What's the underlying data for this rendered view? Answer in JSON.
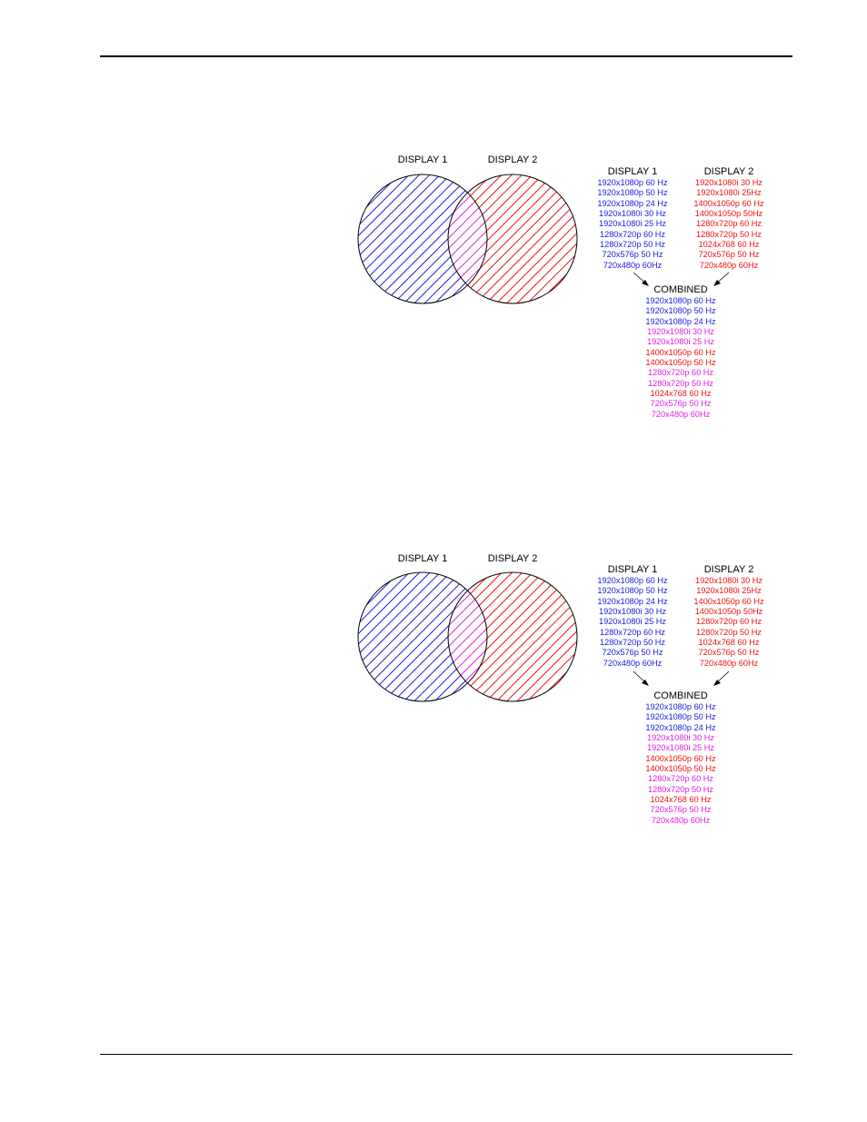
{
  "colors": {
    "display1": "#1a1ae0",
    "display2": "#ee1111",
    "shared": "#e020e0",
    "black": "#000000"
  },
  "figures": [
    {
      "venn": {
        "left_label": "DISPLAY 1",
        "right_label": "DISPLAY 2"
      },
      "display1": {
        "title": "DISPLAY 1",
        "modes": [
          "1920x1080p 60 Hz",
          "1920x1080p 50 Hz",
          "1920x1080p 24 Hz",
          "1920x1080i 30 Hz",
          "1920x1080i 25 Hz",
          "1280x720p 60 Hz",
          "1280x720p 50 Hz",
          "720x576p 50 Hz",
          "720x480p 60Hz"
        ]
      },
      "display2": {
        "title": "DISPLAY 2",
        "modes": [
          "1920x1080i 30 Hz",
          "1920x1080i 25Hz",
          "1400x1050p 60 Hz",
          "1400x1050p 50Hz",
          "1280x720p 60 Hz",
          "1280x720p 50 Hz",
          "1024x768 60 Hz",
          "720x576p 50 Hz",
          "720x480p 60Hz"
        ]
      },
      "combined": {
        "title": "COMBINED",
        "modes": [
          {
            "text": "1920x1080p 60 Hz",
            "source": "display1"
          },
          {
            "text": "1920x1080p 50 Hz",
            "source": "display1"
          },
          {
            "text": "1920x1080p 24 Hz",
            "source": "display1"
          },
          {
            "text": "1920x1080i 30 Hz",
            "source": "shared"
          },
          {
            "text": "1920x1080i 25 Hz",
            "source": "shared"
          },
          {
            "text": "1400x1050p 60 Hz",
            "source": "display2"
          },
          {
            "text": "1400x1050p 50 Hz",
            "source": "display2"
          },
          {
            "text": "1280x720p 60 Hz",
            "source": "shared"
          },
          {
            "text": "1280x720p 50 Hz",
            "source": "shared"
          },
          {
            "text": "1024x768 60 Hz",
            "source": "display2"
          },
          {
            "text": "720x576p 50 Hz",
            "source": "shared"
          },
          {
            "text": "720x480p 60Hz",
            "source": "shared"
          }
        ]
      }
    },
    {
      "venn": {
        "left_label": "DISPLAY 1",
        "right_label": "DISPLAY 2"
      },
      "display1": {
        "title": "DISPLAY 1",
        "modes": [
          "1920x1080p 60 Hz",
          "1920x1080p 50 Hz",
          "1920x1080p 24 Hz",
          "1920x1080i 30 Hz",
          "1920x1080i 25 Hz",
          "1280x720p 60 Hz",
          "1280x720p 50 Hz",
          "720x576p 50 Hz",
          "720x480p 60Hz"
        ]
      },
      "display2": {
        "title": "DISPLAY 2",
        "modes": [
          "1920x1080i 30 Hz",
          "1920x1080i 25Hz",
          "1400x1050p 60 Hz",
          "1400x1050p 50Hz",
          "1280x720p 60 Hz",
          "1280x720p 50 Hz",
          "1024x768 60 Hz",
          "720x576p 50 Hz",
          "720x480p 60Hz"
        ]
      },
      "combined": {
        "title": "COMBINED",
        "modes": [
          {
            "text": "1920x1080p 60 Hz",
            "source": "display1"
          },
          {
            "text": "1920x1080p 50 Hz",
            "source": "display1"
          },
          {
            "text": "1920x1080p 24 Hz",
            "source": "display1"
          },
          {
            "text": "1920x1080i 30 Hz",
            "source": "shared"
          },
          {
            "text": "1920x1080i 25 Hz",
            "source": "shared"
          },
          {
            "text": "1400x1050p 60 Hz",
            "source": "display2"
          },
          {
            "text": "1400x1050p 50 Hz",
            "source": "display2"
          },
          {
            "text": "1280x720p 60 Hz",
            "source": "shared"
          },
          {
            "text": "1280x720p 50 Hz",
            "source": "shared"
          },
          {
            "text": "1024x768 60 Hz",
            "source": "display2"
          },
          {
            "text": "720x576p 50 Hz",
            "source": "shared"
          },
          {
            "text": "720x480p 60Hz",
            "source": "shared"
          }
        ]
      }
    }
  ]
}
